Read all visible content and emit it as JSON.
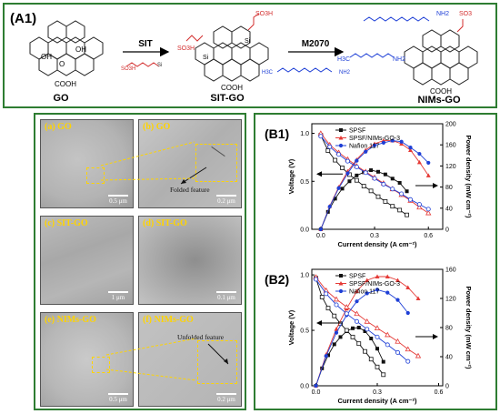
{
  "panel_a1": {
    "tag": "(A1)",
    "arrow1_label": "SIT",
    "arrow2_label": "M2070",
    "compounds": [
      "GO",
      "SIT-GO",
      "NIMs-GO"
    ],
    "atoms": {
      "oh": "OH",
      "o": "O",
      "cooh": "COOH",
      "so3h": "SO3H",
      "si": "Si",
      "so3": "SO3",
      "nh2": "NH2",
      "h3c": "H3C"
    }
  },
  "tem": {
    "panels": [
      {
        "label": "(a) GO",
        "scale": "0.5 μm"
      },
      {
        "label": "(b) GO",
        "scale": "0.2 μm",
        "annotation": "Folded feature"
      },
      {
        "label": "(c) SIT-GO",
        "scale": "1 μm"
      },
      {
        "label": "(d) SIT-GO",
        "scale": "0.1 μm"
      },
      {
        "label": "(e) NIMs-GO",
        "scale": "0.5 μm"
      },
      {
        "label": "(f) NIMs-GO",
        "scale": "0.2 μm",
        "annotation": "Unfolded feature"
      }
    ]
  },
  "colors": {
    "panel_border": "#2e7d32",
    "spsf": "#111111",
    "nims": "#e53935",
    "nafion": "#1e3fd6",
    "tem_label": "#ffd400"
  },
  "chart_data": [
    {
      "type": "line",
      "tag": "(B1)",
      "xlabel": "Current density (A cm⁻²)",
      "ylabel_left": "Voltage (V)",
      "ylabel_right": "Power density (mW cm⁻²)",
      "xlim": [
        -0.05,
        0.68
      ],
      "ylim_left": [
        0.0,
        1.1
      ],
      "ylim_right": [
        0,
        200
      ],
      "x_ticks": [
        0.0,
        0.3,
        0.6
      ],
      "y_left_ticks": [
        0.0,
        0.5,
        1.0
      ],
      "y_right_ticks": [
        0,
        40,
        80,
        120,
        160,
        200
      ],
      "legend": {
        "position": "top-left",
        "entries": [
          "SPSF",
          "SPSF/NIMs-GO-3",
          "Nafion 117"
        ]
      },
      "series": [
        {
          "name": "SPSF",
          "color": "#111111",
          "x": [
            0.0,
            0.04,
            0.08,
            0.12,
            0.16,
            0.2,
            0.24,
            0.28,
            0.32,
            0.36,
            0.4,
            0.44,
            0.48
          ],
          "voltage": [
            0.98,
            0.82,
            0.72,
            0.64,
            0.57,
            0.51,
            0.45,
            0.4,
            0.34,
            0.29,
            0.24,
            0.2,
            0.15
          ],
          "power": [
            0,
            33,
            58,
            77,
            91,
            102,
            108,
            112,
            109,
            104,
            96,
            88,
            72
          ]
        },
        {
          "name": "SPSF/NIMs-GO-3",
          "color": "#e53935",
          "x": [
            0.0,
            0.05,
            0.1,
            0.15,
            0.2,
            0.25,
            0.3,
            0.35,
            0.4,
            0.45,
            0.5,
            0.55,
            0.6
          ],
          "voltage": [
            1.0,
            0.88,
            0.8,
            0.73,
            0.66,
            0.6,
            0.54,
            0.48,
            0.42,
            0.36,
            0.3,
            0.23,
            0.17
          ],
          "power": [
            0,
            44,
            80,
            110,
            132,
            150,
            162,
            168,
            168,
            162,
            150,
            127,
            102
          ]
        },
        {
          "name": "Nafion 117",
          "color": "#1e3fd6",
          "x": [
            0.0,
            0.05,
            0.1,
            0.15,
            0.2,
            0.25,
            0.3,
            0.35,
            0.4,
            0.45,
            0.5,
            0.55,
            0.6
          ],
          "voltage": [
            0.97,
            0.86,
            0.78,
            0.71,
            0.65,
            0.59,
            0.53,
            0.47,
            0.42,
            0.37,
            0.31,
            0.26,
            0.21
          ],
          "power": [
            0,
            43,
            78,
            106,
            130,
            147,
            159,
            164,
            168,
            166,
            155,
            143,
            126
          ]
        }
      ]
    },
    {
      "type": "line",
      "tag": "(B2)",
      "xlabel": "Current density (A cm⁻²)",
      "ylabel_left": "Voltage (V)",
      "ylabel_right": "Power density (mW cm⁻²)",
      "xlim": [
        -0.02,
        0.62
      ],
      "ylim_left": [
        0.0,
        1.05
      ],
      "ylim_right": [
        0,
        160
      ],
      "x_ticks": [
        0.0,
        0.3,
        0.6
      ],
      "y_left_ticks": [
        0.0,
        0.5,
        1.0
      ],
      "y_right_ticks": [
        0,
        40,
        80,
        120,
        160
      ],
      "legend": {
        "position": "top-left",
        "entries": [
          "SPSF",
          "SPSF/NIMs-GO-3",
          "Nafion 117"
        ]
      },
      "series": [
        {
          "name": "SPSF",
          "color": "#111111",
          "x": [
            0.0,
            0.03,
            0.06,
            0.09,
            0.12,
            0.15,
            0.18,
            0.21,
            0.24,
            0.27,
            0.3,
            0.33
          ],
          "voltage": [
            0.97,
            0.8,
            0.7,
            0.63,
            0.56,
            0.5,
            0.44,
            0.38,
            0.31,
            0.24,
            0.17,
            0.1
          ],
          "power": [
            0,
            24,
            42,
            57,
            67,
            75,
            79,
            80,
            75,
            65,
            51,
            33
          ]
        },
        {
          "name": "SPSF/NIMs-GO-3",
          "color": "#e53935",
          "x": [
            0.0,
            0.05,
            0.1,
            0.15,
            0.2,
            0.25,
            0.3,
            0.35,
            0.4,
            0.45,
            0.5
          ],
          "voltage": [
            0.98,
            0.86,
            0.78,
            0.71,
            0.65,
            0.58,
            0.52,
            0.46,
            0.4,
            0.33,
            0.27
          ],
          "power": [
            0,
            43,
            78,
            106,
            130,
            145,
            150,
            150,
            145,
            135,
            120
          ]
        },
        {
          "name": "Nafion 117",
          "color": "#1e3fd6",
          "x": [
            0.0,
            0.05,
            0.1,
            0.15,
            0.2,
            0.25,
            0.3,
            0.35,
            0.4,
            0.45
          ],
          "voltage": [
            0.96,
            0.83,
            0.73,
            0.65,
            0.58,
            0.51,
            0.44,
            0.37,
            0.3,
            0.22
          ],
          "power": [
            0,
            41,
            73,
            97,
            116,
            127,
            132,
            128,
            118,
            100
          ]
        }
      ]
    }
  ]
}
